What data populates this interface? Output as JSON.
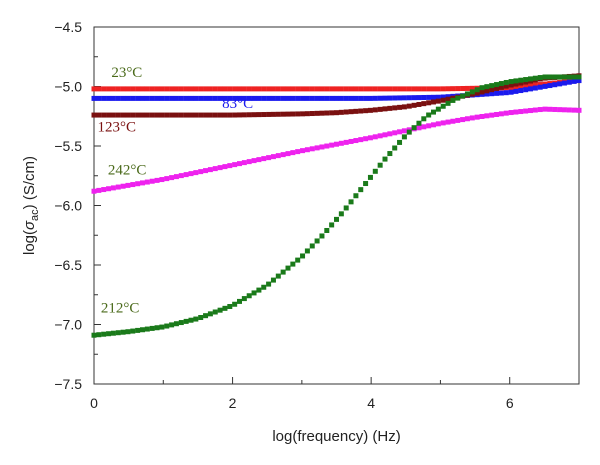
{
  "chart_data": {
    "type": "scatter",
    "xlabel": "log(frequency) (Hz)",
    "ylabel": {
      "prefix": "log(",
      "symbol": "σ",
      "subscript": "ac",
      "suffix": ")  (S/cm)"
    },
    "xlim": [
      0,
      7
    ],
    "ylim": [
      -7.5,
      -4.5
    ],
    "xticks": [
      0,
      2,
      4,
      6
    ],
    "yticks": [
      -4.5,
      -5.0,
      -5.5,
      -6.0,
      -6.5,
      -7.0,
      -7.5
    ],
    "xtick_labels": [
      "0",
      "2",
      "4",
      "6"
    ],
    "ytick_labels": [
      "−4.5",
      "−5.0",
      "−5.5",
      "−6.0",
      "−6.5",
      "−7.0",
      "−7.5"
    ],
    "grid": false,
    "series": [
      {
        "name": "23°C",
        "color": "#ee2222",
        "x": [
          0,
          1,
          2,
          3,
          4,
          5,
          6,
          6.5,
          7
        ],
        "y": [
          -5.02,
          -5.02,
          -5.02,
          -5.02,
          -5.02,
          -5.02,
          -5.01,
          -4.98,
          -4.95
        ]
      },
      {
        "name": "83°C",
        "color": "#1a1aee",
        "x": [
          0,
          1,
          2,
          3,
          4,
          5,
          6,
          6.5,
          7
        ],
        "y": [
          -5.1,
          -5.1,
          -5.1,
          -5.1,
          -5.1,
          -5.09,
          -5.05,
          -5.0,
          -4.95
        ]
      },
      {
        "name": "123°C",
        "color": "#7a1010",
        "x": [
          0,
          1,
          2,
          3,
          3.5,
          4,
          4.5,
          5,
          5.5,
          6,
          6.5,
          7
        ],
        "y": [
          -5.24,
          -5.24,
          -5.24,
          -5.23,
          -5.22,
          -5.2,
          -5.17,
          -5.12,
          -5.06,
          -4.99,
          -4.93,
          -4.91
        ]
      },
      {
        "name": "242°C",
        "color": "#ee22ee",
        "x": [
          0,
          1,
          2,
          3,
          4,
          5,
          5.5,
          6,
          6.5,
          7
        ],
        "y": [
          -5.88,
          -5.78,
          -5.66,
          -5.54,
          -5.43,
          -5.31,
          -5.26,
          -5.22,
          -5.19,
          -5.2
        ]
      },
      {
        "name": "212°C",
        "color": "#1a7a1a",
        "x": [
          0,
          0.5,
          1,
          1.5,
          2,
          2.5,
          3,
          3.3,
          3.6,
          3.9,
          4.2,
          4.5,
          4.8,
          5.2,
          5.6,
          6,
          6.5,
          7
        ],
        "y": [
          -7.09,
          -7.06,
          -7.02,
          -6.95,
          -6.84,
          -6.67,
          -6.43,
          -6.25,
          -6.05,
          -5.83,
          -5.61,
          -5.41,
          -5.25,
          -5.11,
          -5.01,
          -4.96,
          -4.92,
          -4.92
        ]
      }
    ]
  }
}
